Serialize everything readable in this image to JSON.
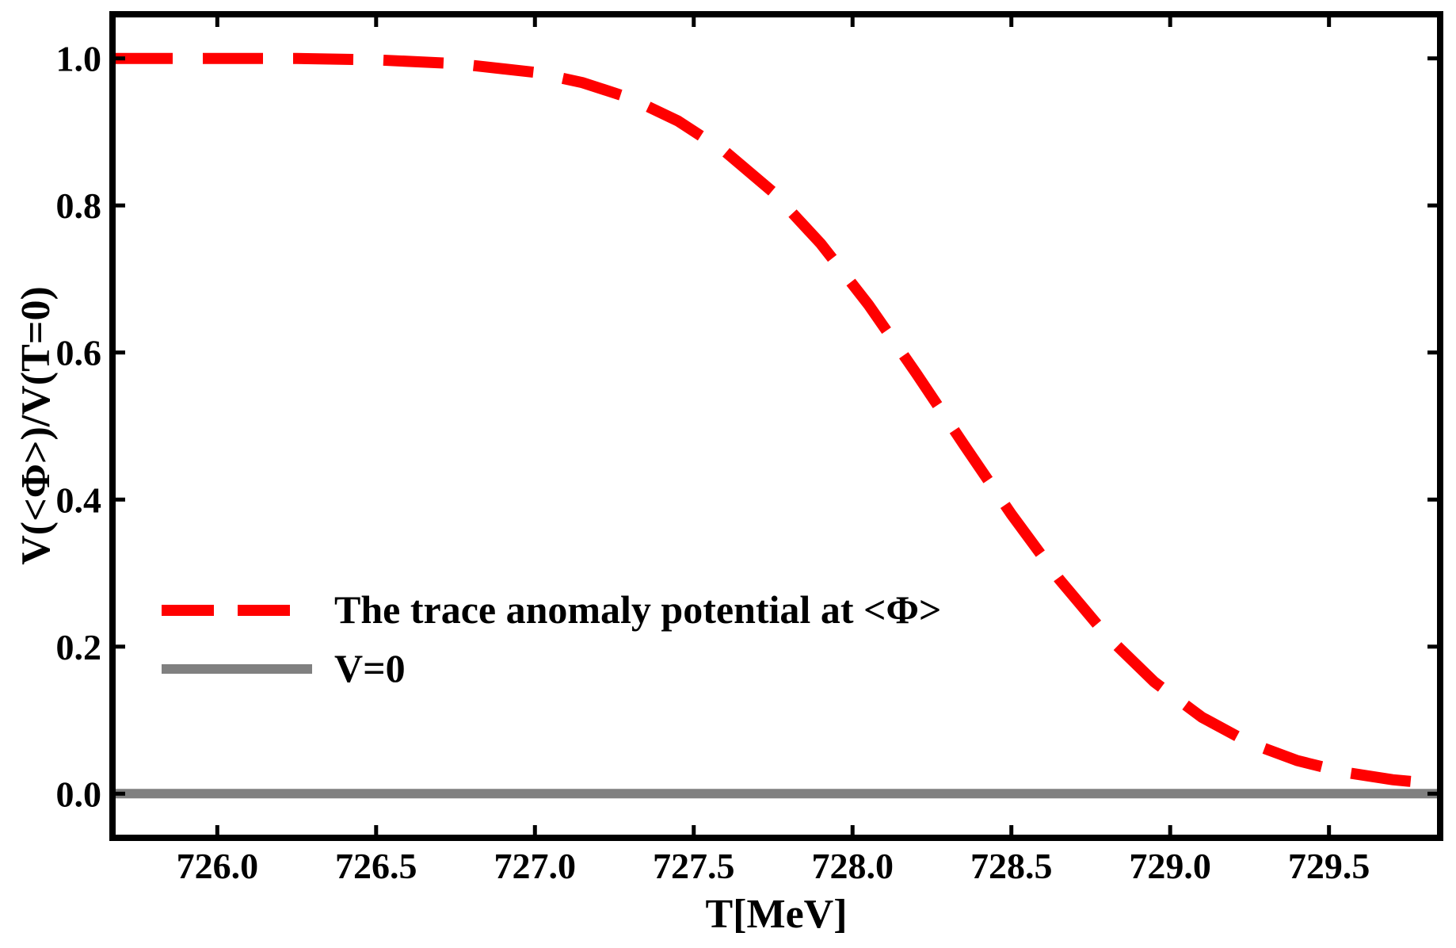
{
  "chart_data": {
    "type": "line",
    "title": "",
    "xlabel": "T[MeV]",
    "ylabel": "V(<Φ>)/V(T=0)",
    "xlim": [
      725.67,
      729.85
    ],
    "ylim": [
      -0.06,
      1.06
    ],
    "xticks": [
      726.0,
      726.5,
      727.0,
      727.5,
      728.0,
      728.5,
      729.0,
      729.5
    ],
    "xtick_labels": [
      "726.0",
      "726.5",
      "727.0",
      "727.5",
      "728.0",
      "728.5",
      "729.0",
      "729.5"
    ],
    "yticks": [
      0.0,
      0.2,
      0.4,
      0.6,
      0.8,
      1.0
    ],
    "ytick_labels": [
      "0.0",
      "0.2",
      "0.4",
      "0.6",
      "0.8",
      "1.0"
    ],
    "grid": false,
    "legend_position": "lower-left",
    "series": [
      {
        "name": "The trace anomaly potential at <Φ>",
        "color": "#ff0000",
        "style": "dashed",
        "x": [
          725.67,
          726.0,
          726.25,
          726.5,
          726.75,
          727.0,
          727.15,
          727.3,
          727.45,
          727.6,
          727.75,
          727.9,
          728.05,
          728.2,
          728.35,
          728.5,
          728.65,
          728.8,
          728.95,
          729.1,
          729.25,
          729.4,
          729.55,
          729.7,
          729.85
        ],
        "y": [
          1.0,
          1.0,
          1.0,
          0.998,
          0.993,
          0.981,
          0.967,
          0.946,
          0.915,
          0.873,
          0.818,
          0.748,
          0.665,
          0.572,
          0.475,
          0.38,
          0.292,
          0.215,
          0.152,
          0.104,
          0.069,
          0.045,
          0.029,
          0.019,
          0.013
        ]
      },
      {
        "name": "V=0",
        "color": "#808080",
        "style": "solid",
        "x": [
          725.67,
          729.85
        ],
        "y": [
          0.0,
          0.0
        ]
      }
    ]
  }
}
